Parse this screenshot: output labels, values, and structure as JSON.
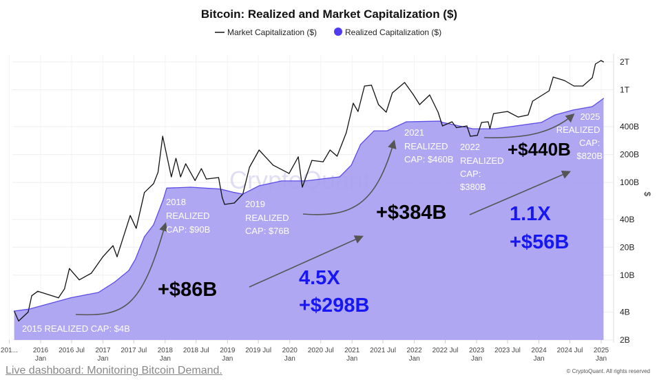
{
  "chart_data": {
    "type": "area",
    "title": "Bitcoin: Realized and Market Capitalization ($)",
    "ylabel": "$",
    "yscale": "log",
    "ylim_billions": [
      2,
      2500
    ],
    "grid": true,
    "legend_placement": "top-center",
    "colors": {
      "market_line": "#111111",
      "realized_fill": "#a89ff0",
      "realized_line": "#5b4ce6",
      "realized_legend": "#4f3cf0",
      "annotation_blue": "#1717f5"
    },
    "y_ticks": [
      {
        "label": "2T",
        "value": 2000
      },
      {
        "label": "1T",
        "value": 1000
      },
      {
        "label": "400B",
        "value": 400
      },
      {
        "label": "200B",
        "value": 200
      },
      {
        "label": "100B",
        "value": 100
      },
      {
        "label": "40B",
        "value": 40
      },
      {
        "label": "20B",
        "value": 20
      },
      {
        "label": "10B",
        "value": 10
      },
      {
        "label": "4B",
        "value": 4
      },
      {
        "label": "2B",
        "value": 2
      }
    ],
    "x_ticks": [
      {
        "date": "2015-07-01",
        "l1": "201...",
        "l2": ""
      },
      {
        "date": "2016-01-01",
        "l1": "2016",
        "l2": "Jan"
      },
      {
        "date": "2016-07-01",
        "l1": "2016 Jul",
        "l2": ""
      },
      {
        "date": "2017-01-01",
        "l1": "2017",
        "l2": "Jan"
      },
      {
        "date": "2017-07-01",
        "l1": "2017 Jul",
        "l2": ""
      },
      {
        "date": "2018-01-01",
        "l1": "2018",
        "l2": "Jan"
      },
      {
        "date": "2018-07-01",
        "l1": "2018 Jul",
        "l2": ""
      },
      {
        "date": "2019-01-01",
        "l1": "2019",
        "l2": "Jan"
      },
      {
        "date": "2019-07-01",
        "l1": "2019 Jul",
        "l2": ""
      },
      {
        "date": "2020-01-01",
        "l1": "2020",
        "l2": "Jan"
      },
      {
        "date": "2020-07-01",
        "l1": "2020 Jul",
        "l2": ""
      },
      {
        "date": "2021-01-01",
        "l1": "2021",
        "l2": "Jan"
      },
      {
        "date": "2021-07-01",
        "l1": "2021 Jul",
        "l2": ""
      },
      {
        "date": "2022-01-01",
        "l1": "2022",
        "l2": "Jan"
      },
      {
        "date": "2022-07-01",
        "l1": "2022 Jul",
        "l2": ""
      },
      {
        "date": "2023-01-01",
        "l1": "2023",
        "l2": "Jan"
      },
      {
        "date": "2023-07-01",
        "l1": "2023 Jul",
        "l2": ""
      },
      {
        "date": "2024-01-01",
        "l1": "2024",
        "l2": "Jan"
      },
      {
        "date": "2024-07-01",
        "l1": "2024 Jul",
        "l2": ""
      },
      {
        "date": "2025-01-01",
        "l1": "2025",
        "l2": "Jan"
      }
    ],
    "series": [
      {
        "name": "Market Capitalization ($)",
        "unit": "billions USD",
        "points": [
          [
            "2015-07-30",
            4.1
          ],
          [
            "2015-08-25",
            3.2
          ],
          [
            "2015-10-20",
            4.0
          ],
          [
            "2015-11-10",
            6.0
          ],
          [
            "2015-12-15",
            6.7
          ],
          [
            "2016-04-15",
            5.7
          ],
          [
            "2016-05-20",
            7.1
          ],
          [
            "2016-06-18",
            11.8
          ],
          [
            "2016-08-15",
            8.9
          ],
          [
            "2016-10-25",
            10.5
          ],
          [
            "2017-01-01",
            15.8
          ],
          [
            "2017-03-01",
            20.8
          ],
          [
            "2017-03-25",
            15.8
          ],
          [
            "2017-06-10",
            44
          ],
          [
            "2017-07-15",
            32
          ],
          [
            "2017-09-01",
            78
          ],
          [
            "2017-10-25",
            97
          ],
          [
            "2017-11-20",
            129
          ],
          [
            "2017-12-17",
            315
          ],
          [
            "2018-02-06",
            115
          ],
          [
            "2018-03-05",
            182
          ],
          [
            "2018-04-01",
            115
          ],
          [
            "2018-05-01",
            159
          ],
          [
            "2018-06-25",
            105
          ],
          [
            "2018-08-01",
            141
          ],
          [
            "2018-08-30",
            109
          ],
          [
            "2018-11-10",
            113
          ],
          [
            "2018-12-01",
            69
          ],
          [
            "2018-12-15",
            58
          ],
          [
            "2019-02-10",
            60
          ],
          [
            "2019-04-01",
            75
          ],
          [
            "2019-05-10",
            146
          ],
          [
            "2019-07-05",
            224
          ],
          [
            "2019-09-25",
            154
          ],
          [
            "2019-12-28",
            125
          ],
          [
            "2020-02-20",
            189
          ],
          [
            "2020-03-15",
            89
          ],
          [
            "2020-05-10",
            173
          ],
          [
            "2020-07-15",
            167
          ],
          [
            "2020-08-25",
            224
          ],
          [
            "2020-10-05",
            192
          ],
          [
            "2020-11-28",
            344
          ],
          [
            "2021-01-08",
            716
          ],
          [
            "2021-02-05",
            583
          ],
          [
            "2021-03-15",
            1097
          ],
          [
            "2021-04-25",
            1120
          ],
          [
            "2021-06-05",
            692
          ],
          [
            "2021-07-20",
            573
          ],
          [
            "2021-08-25",
            925
          ],
          [
            "2021-11-05",
            1197
          ],
          [
            "2021-12-25",
            893
          ],
          [
            "2022-02-01",
            692
          ],
          [
            "2022-04-01",
            879
          ],
          [
            "2022-05-20",
            573
          ],
          [
            "2022-06-15",
            407
          ],
          [
            "2022-08-10",
            451
          ],
          [
            "2022-09-05",
            390
          ],
          [
            "2022-11-05",
            407
          ],
          [
            "2022-11-25",
            315
          ],
          [
            "2023-01-05",
            322
          ],
          [
            "2023-01-30",
            444
          ],
          [
            "2023-03-10",
            451
          ],
          [
            "2023-03-20",
            380
          ],
          [
            "2023-04-10",
            553
          ],
          [
            "2023-07-01",
            583
          ],
          [
            "2023-09-01",
            508
          ],
          [
            "2023-10-30",
            535
          ],
          [
            "2023-11-25",
            753
          ],
          [
            "2024-03-01",
            973
          ],
          [
            "2024-03-25",
            1371
          ],
          [
            "2024-05-30",
            1259
          ],
          [
            "2024-07-25",
            1097
          ],
          [
            "2024-09-15",
            1097
          ],
          [
            "2024-11-10",
            1349
          ],
          [
            "2024-11-28",
            1897
          ],
          [
            "2024-12-31",
            2065
          ],
          [
            "2025-01-15",
            1995
          ]
        ]
      },
      {
        "name": "Realized Capitalization ($)",
        "unit": "billions USD",
        "points": [
          [
            "2015-07-30",
            4.1
          ],
          [
            "2015-10-25",
            4.3
          ],
          [
            "2016-06-25",
            5.7
          ],
          [
            "2016-12-05",
            6.5
          ],
          [
            "2017-03-10",
            8.4
          ],
          [
            "2017-06-01",
            11.2
          ],
          [
            "2017-07-10",
            14.8
          ],
          [
            "2017-09-01",
            26
          ],
          [
            "2017-10-25",
            35
          ],
          [
            "2017-12-20",
            65
          ],
          [
            "2018-01-10",
            87
          ],
          [
            "2018-05-30",
            89
          ],
          [
            "2018-11-20",
            85
          ],
          [
            "2019-02-10",
            78
          ],
          [
            "2019-04-01",
            75
          ],
          [
            "2019-07-05",
            92
          ],
          [
            "2019-11-15",
            104
          ],
          [
            "2020-04-01",
            104
          ],
          [
            "2020-10-20",
            115
          ],
          [
            "2020-12-28",
            154
          ],
          [
            "2021-02-20",
            257
          ],
          [
            "2021-05-10",
            361
          ],
          [
            "2021-07-25",
            361
          ],
          [
            "2021-11-15",
            451
          ],
          [
            "2022-06-01",
            459
          ],
          [
            "2022-06-15",
            444
          ],
          [
            "2022-12-10",
            380
          ],
          [
            "2023-04-20",
            380
          ],
          [
            "2024-01-15",
            444
          ],
          [
            "2024-04-05",
            535
          ],
          [
            "2024-07-20",
            604
          ],
          [
            "2024-11-10",
            658
          ],
          [
            "2025-01-15",
            807
          ]
        ]
      }
    ],
    "annotations": {
      "a2015": "2015 REALIZED CAP: $4B",
      "a2018": [
        "2018",
        "REALIZED",
        "CAP: $90B"
      ],
      "a2019": [
        "2019",
        "REALIZED",
        "CAP: $76B"
      ],
      "a2021": [
        "2021",
        "REALIZED",
        "CAP: $460B"
      ],
      "a2022": [
        "2022",
        "REALIZED",
        "CAP:",
        "$380B"
      ],
      "a2025": [
        "2025",
        "REALIZED",
        "CAP:",
        "$820B"
      ],
      "gain1": "+$86B",
      "mult2": "4.5X",
      "gain2": "+$298B",
      "gain3": "+$384B",
      "mult4": "1.1X",
      "gain4": "+$56B",
      "gain5": "+$440B"
    }
  },
  "watermark": "CryptoQuant",
  "copyright": "© CryptoQuant. All rights reserved",
  "footer_link": "Live dashboard: Monitoring Bitcoin Demand."
}
